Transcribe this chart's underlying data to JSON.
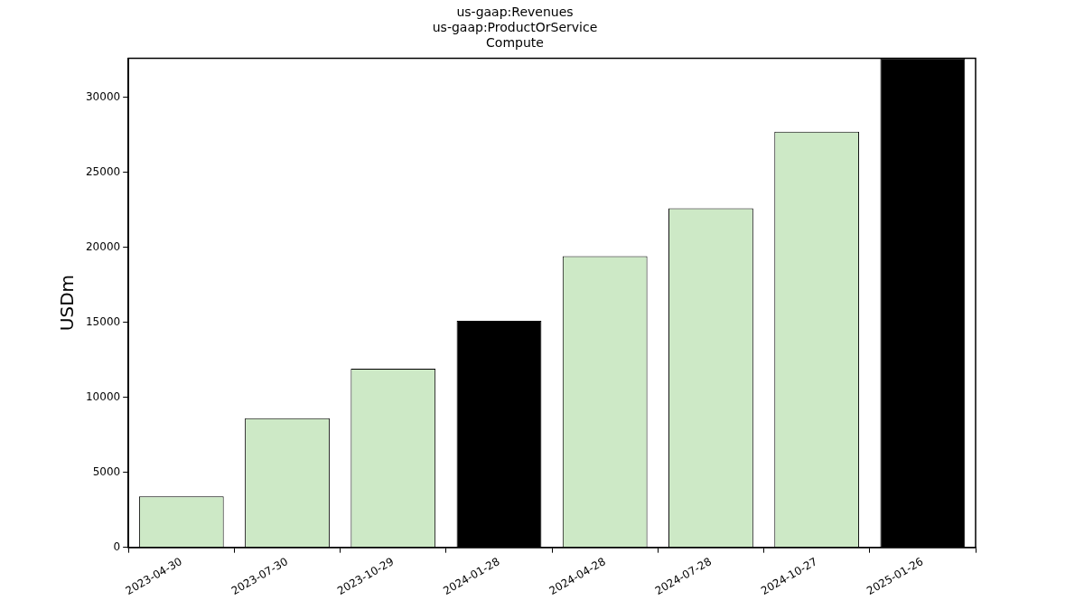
{
  "chart_data": {
    "type": "bar",
    "title": "us-gaap:Revenues\nus-gaap:ProductOrService\nCompute",
    "ylabel": "USDm",
    "categories": [
      "2023-04-30",
      "2023-07-30",
      "2023-10-29",
      "2024-01-28",
      "2024-04-28",
      "2024-07-28",
      "2024-10-27",
      "2025-01-26"
    ],
    "values": [
      3400,
      8600,
      11900,
      15100,
      19400,
      22600,
      27700,
      32600
    ],
    "colors": [
      "#cde9c6",
      "#cde9c6",
      "#cde9c6",
      "#000000",
      "#cde9c6",
      "#cde9c6",
      "#cde9c6",
      "#000000"
    ],
    "ylim": [
      0,
      32600
    ],
    "yticks": [
      0,
      5000,
      10000,
      15000,
      20000,
      25000,
      30000
    ],
    "grid": false,
    "legend": false
  }
}
